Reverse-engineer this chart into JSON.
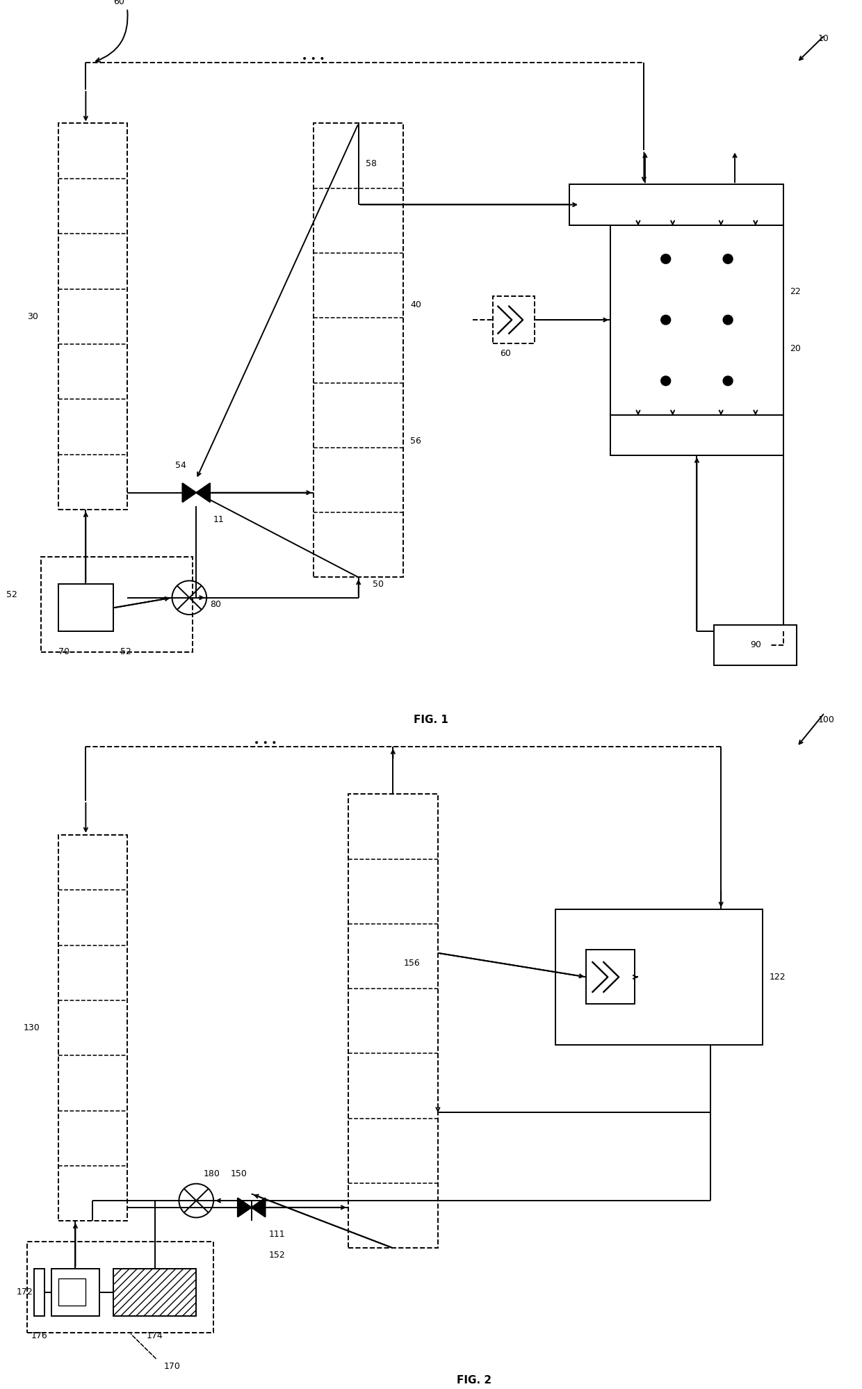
{
  "fig_width": 12.4,
  "fig_height": 19.98,
  "bg_color": "#ffffff",
  "lc": "#000000",
  "lw": 1.4,
  "labels": {
    "10": "10",
    "20": "20",
    "22": "22",
    "30": "30",
    "40": "40",
    "50": "50",
    "52a": "52",
    "52b": "52",
    "54": "54",
    "56": "56",
    "58": "58",
    "60a": "60",
    "60b": "60",
    "11": "11",
    "70": "70",
    "80": "80",
    "90": "90",
    "100": "100",
    "111": "111",
    "122": "122",
    "130": "130",
    "150": "150",
    "152": "152",
    "156": "156",
    "170": "170",
    "172": "172",
    "174": "174",
    "176": "176",
    "180": "180",
    "fig1": "FIG. 1",
    "fig2": "FIG. 2"
  }
}
